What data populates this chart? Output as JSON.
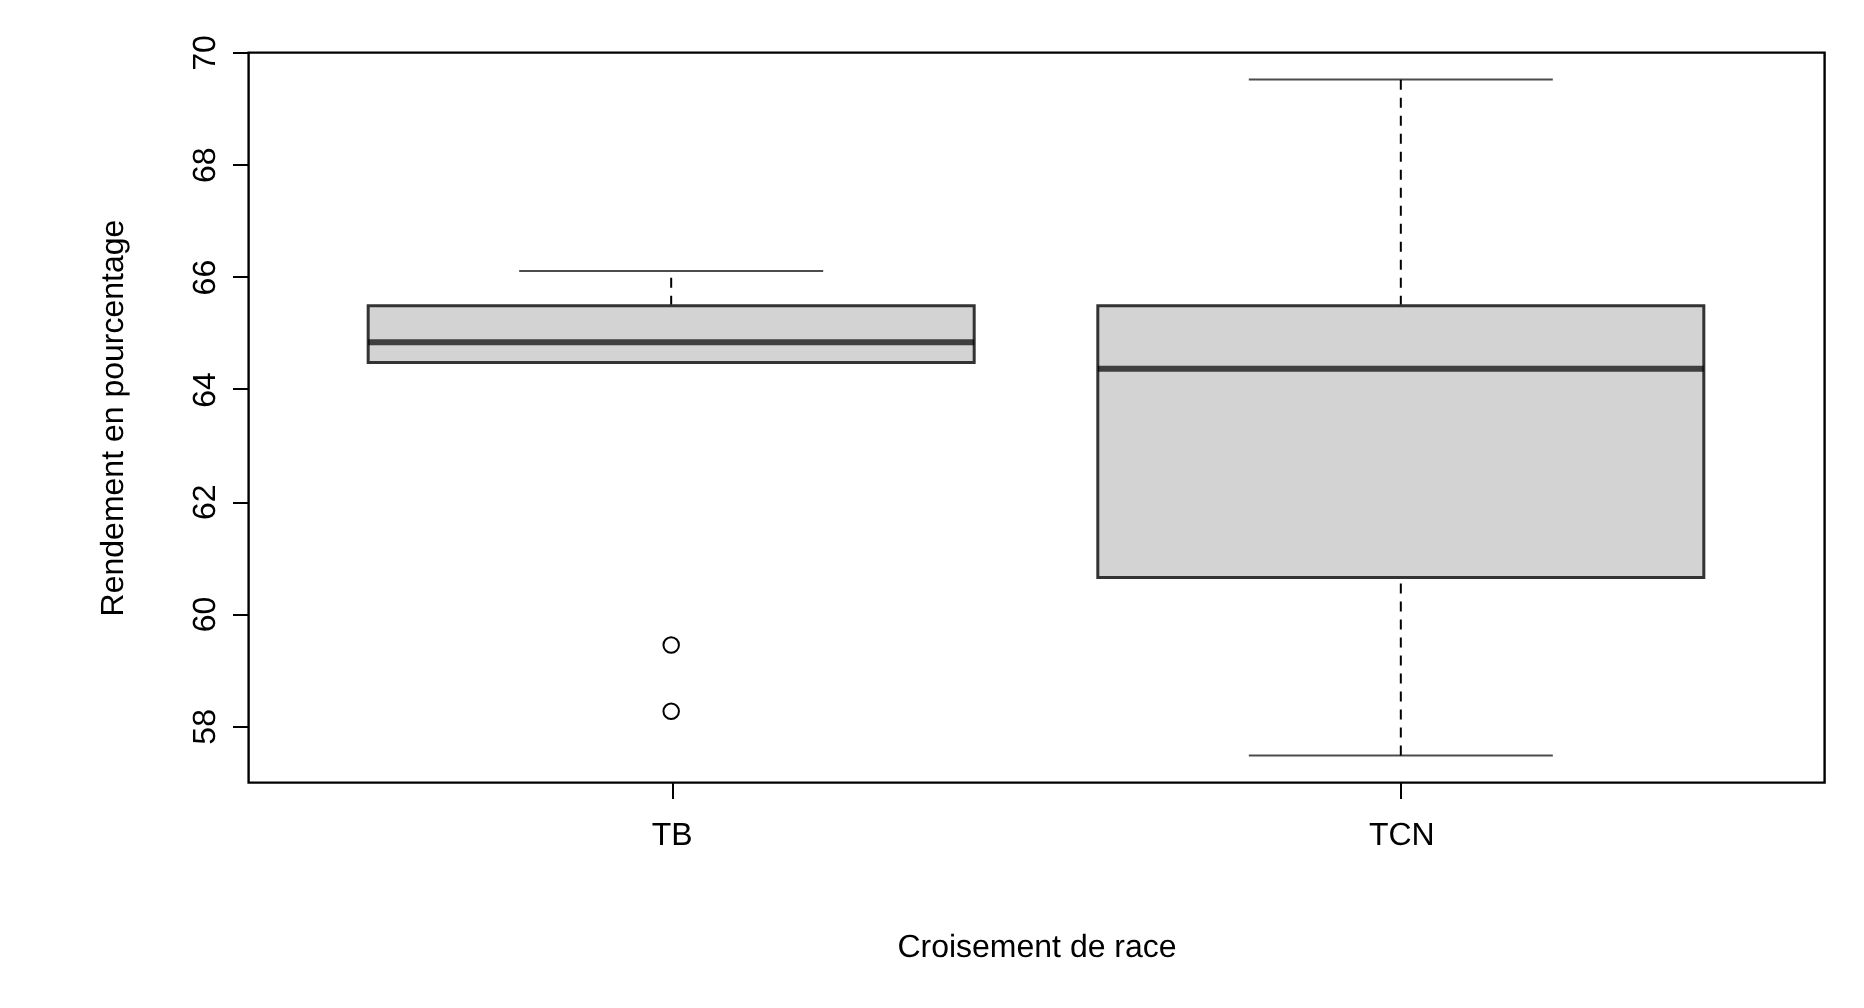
{
  "chart_data": {
    "type": "box",
    "xlabel": "Croisement de race",
    "ylabel": "Rendement en pourcentage",
    "categories": [
      "TB",
      "TCN"
    ],
    "colors": [
      "#d3d3d3",
      "#d3d3d3"
    ],
    "boxes": [
      {
        "low": 64.47,
        "q1": 64.47,
        "median": 64.83,
        "q3": 65.48,
        "high": 66.1,
        "outliers": [
          59.44,
          58.26
        ]
      },
      {
        "low": 57.47,
        "q1": 60.64,
        "median": 64.36,
        "q3": 65.48,
        "high": 69.51
      }
    ],
    "ylim": [
      57.0,
      70.0
    ],
    "yticks": [
      58,
      60,
      62,
      64,
      66,
      68,
      70
    ],
    "grid": false
  }
}
